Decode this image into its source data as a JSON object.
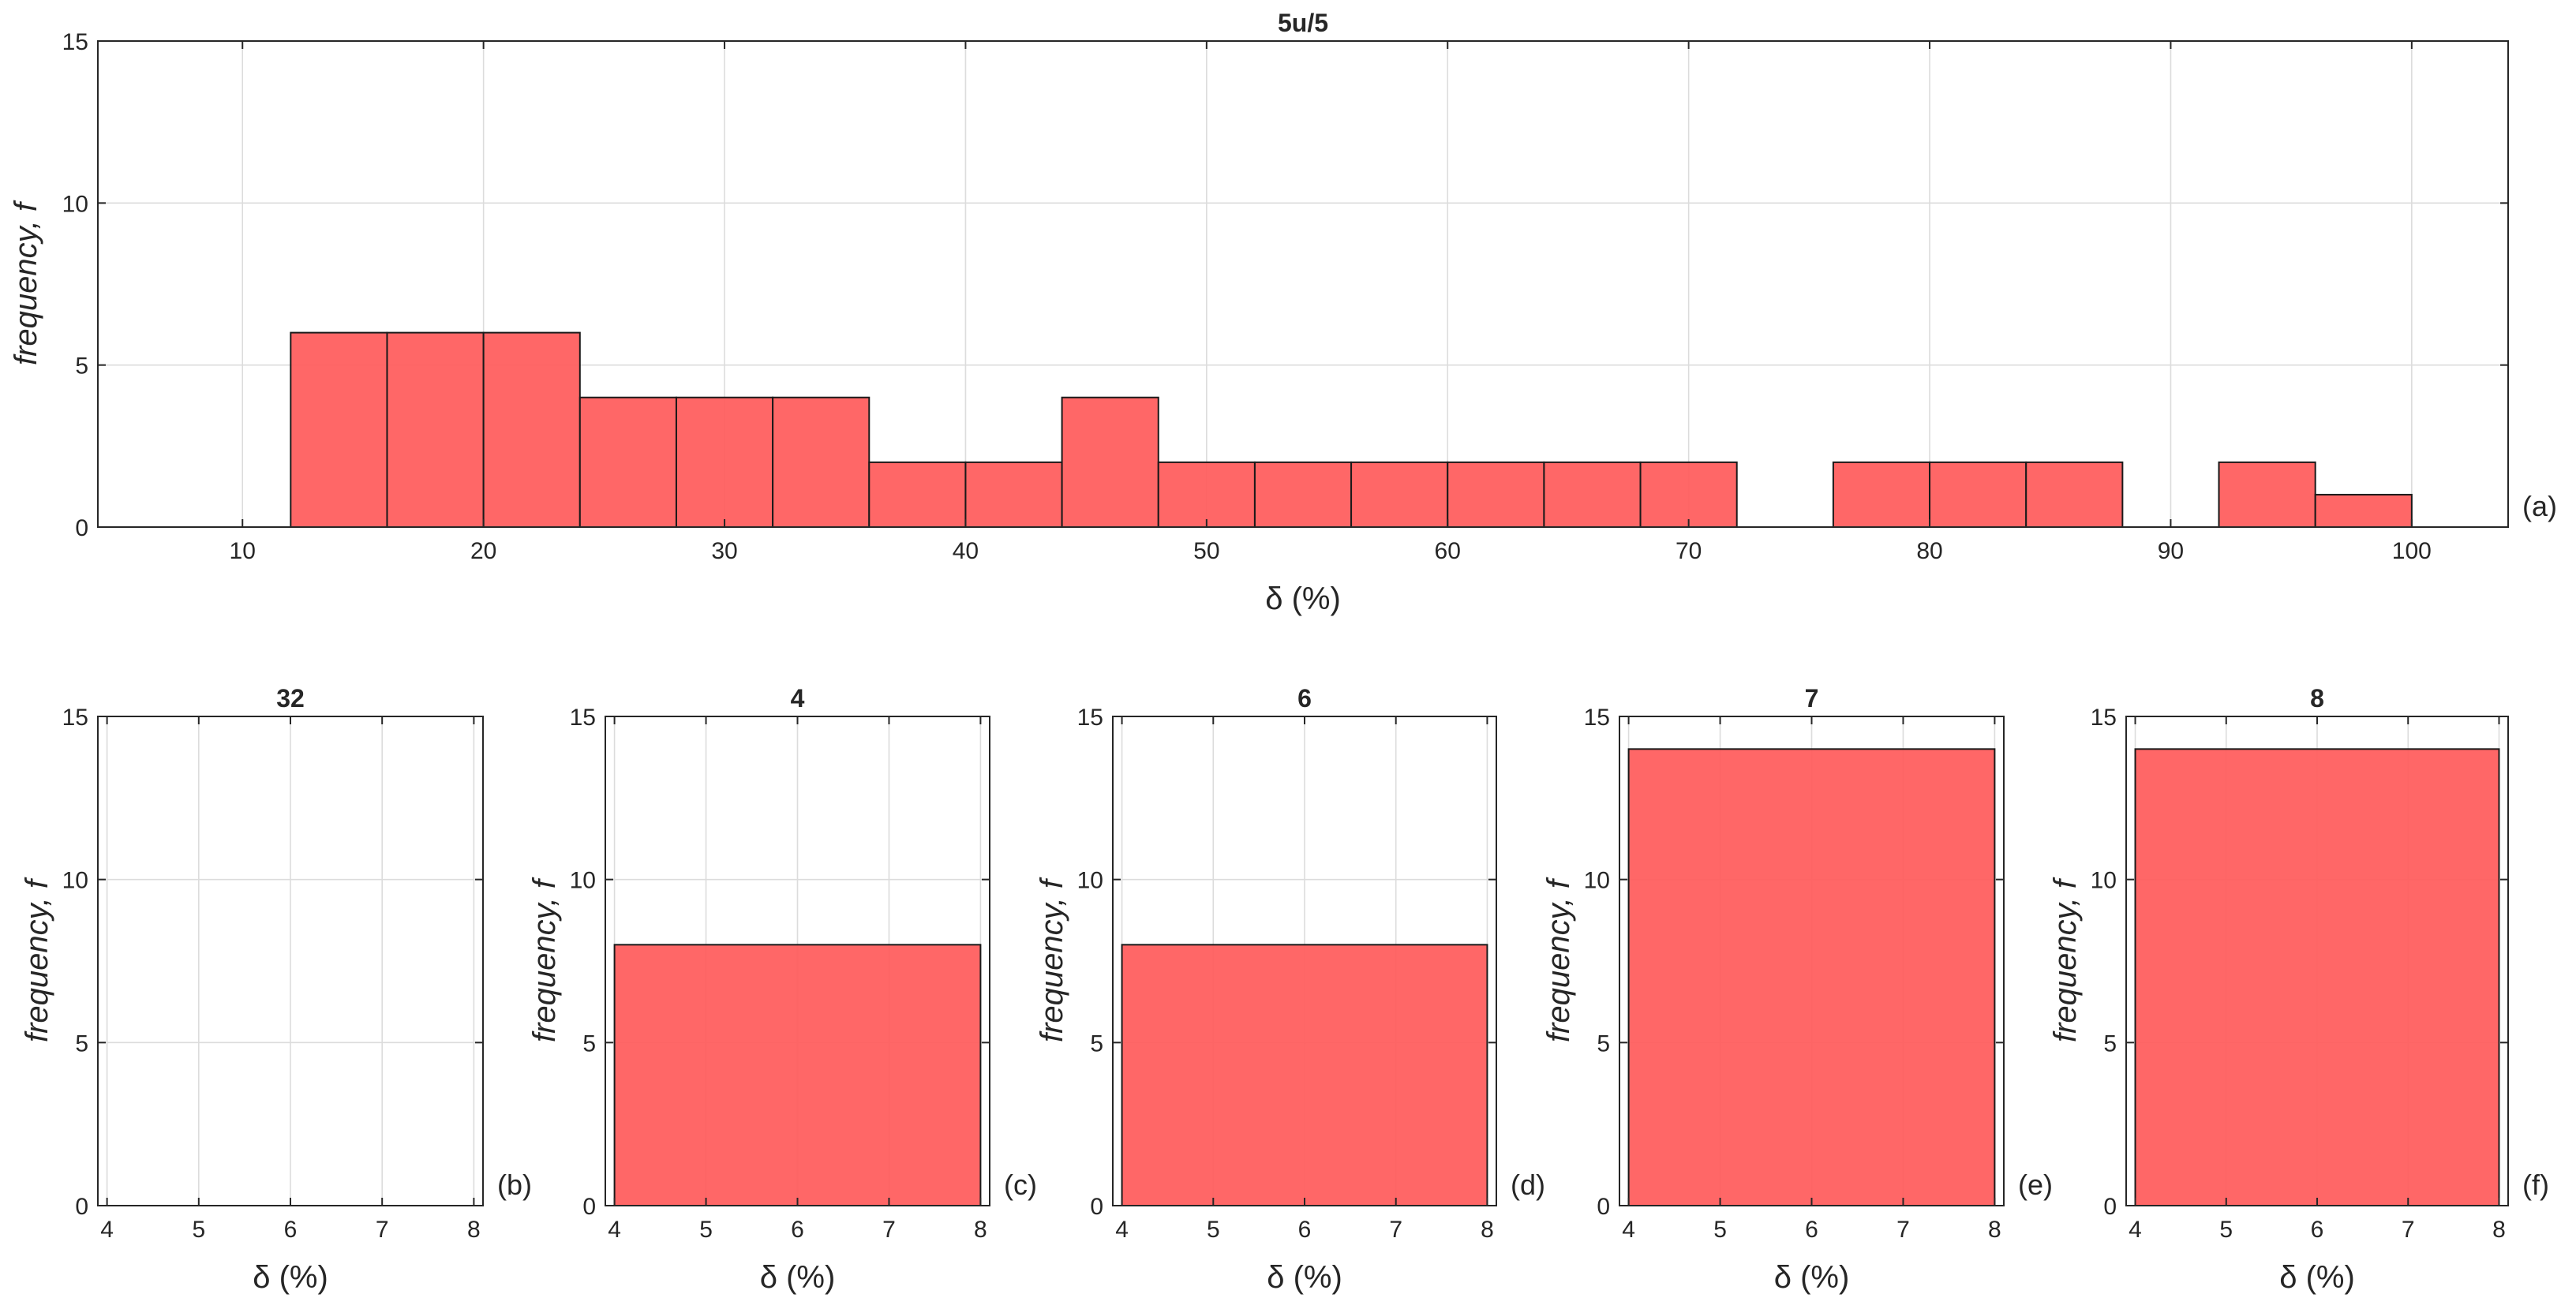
{
  "colors": {
    "bar_fill": "#ff5a5a",
    "bar_edge": "#1a1a1a",
    "grid": "#dcdcdc",
    "axis": "#262626"
  },
  "chart_data": [
    {
      "type": "bar",
      "subtype": "histogram",
      "title": "5u/5",
      "xlabel": "δ (%)",
      "ylabel": "frequency,  f",
      "panel_tag": "(a)",
      "xlim": [
        4,
        104
      ],
      "ylim": [
        0,
        15
      ],
      "xticks": [
        10,
        20,
        30,
        40,
        50,
        60,
        70,
        80,
        90,
        100
      ],
      "yticks": [
        0,
        5,
        10,
        15
      ],
      "grid": true,
      "bin_edges": [
        12,
        16,
        20,
        24,
        28,
        32,
        36,
        40,
        44,
        48,
        52,
        56,
        60,
        64,
        68,
        72,
        76,
        80,
        84,
        88,
        92,
        96,
        100
      ],
      "values": [
        6,
        6,
        6,
        4,
        4,
        4,
        2,
        2,
        4,
        2,
        2,
        2,
        2,
        2,
        2,
        0,
        2,
        2,
        2,
        0,
        2,
        1
      ]
    },
    {
      "type": "bar",
      "subtype": "histogram",
      "title": "32",
      "xlabel": "δ (%)",
      "ylabel": "frequency,  f",
      "panel_tag": "(b)",
      "xlim": [
        3.9,
        8.1
      ],
      "ylim": [
        0,
        15
      ],
      "xticks": [
        4,
        5,
        6,
        7,
        8
      ],
      "yticks": [
        0,
        5,
        10,
        15
      ],
      "grid": true,
      "bin_edges": [
        4,
        8
      ],
      "values": [
        0
      ]
    },
    {
      "type": "bar",
      "subtype": "histogram",
      "title": "4",
      "xlabel": "δ (%)",
      "ylabel": "frequency,  f",
      "panel_tag": "(c)",
      "xlim": [
        3.9,
        8.1
      ],
      "ylim": [
        0,
        15
      ],
      "xticks": [
        4,
        5,
        6,
        7,
        8
      ],
      "yticks": [
        0,
        5,
        10,
        15
      ],
      "grid": true,
      "bin_edges": [
        4,
        8
      ],
      "values": [
        8
      ]
    },
    {
      "type": "bar",
      "subtype": "histogram",
      "title": "6",
      "xlabel": "δ (%)",
      "ylabel": "frequency,  f",
      "panel_tag": "(d)",
      "xlim": [
        3.9,
        8.1
      ],
      "ylim": [
        0,
        15
      ],
      "xticks": [
        4,
        5,
        6,
        7,
        8
      ],
      "yticks": [
        0,
        5,
        10,
        15
      ],
      "grid": true,
      "bin_edges": [
        4,
        8
      ],
      "values": [
        8
      ]
    },
    {
      "type": "bar",
      "subtype": "histogram",
      "title": "7",
      "xlabel": "δ (%)",
      "ylabel": "frequency,  f",
      "panel_tag": "(e)",
      "xlim": [
        3.9,
        8.1
      ],
      "ylim": [
        0,
        15
      ],
      "xticks": [
        4,
        5,
        6,
        7,
        8
      ],
      "yticks": [
        0,
        5,
        10,
        15
      ],
      "grid": true,
      "bin_edges": [
        4,
        8
      ],
      "values": [
        14
      ]
    },
    {
      "type": "bar",
      "subtype": "histogram",
      "title": "8",
      "xlabel": "δ (%)",
      "ylabel": "frequency,  f",
      "panel_tag": "(f)",
      "xlim": [
        3.9,
        8.1
      ],
      "ylim": [
        0,
        15
      ],
      "xticks": [
        4,
        5,
        6,
        7,
        8
      ],
      "yticks": [
        0,
        5,
        10,
        15
      ],
      "grid": true,
      "bin_edges": [
        4,
        8
      ],
      "values": [
        14
      ]
    }
  ]
}
